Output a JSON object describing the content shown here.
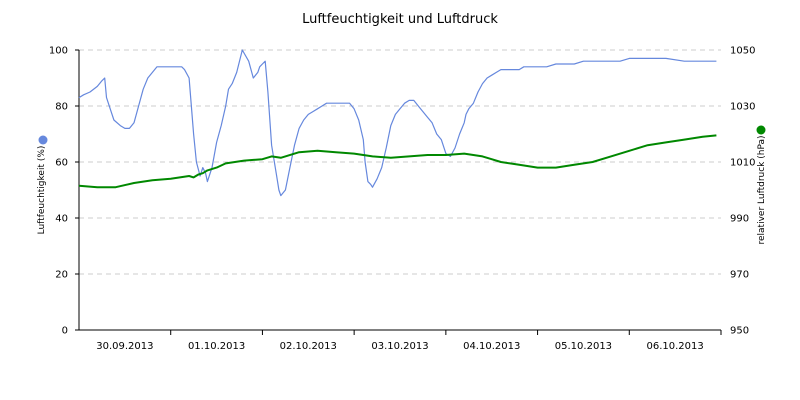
{
  "chart_data": {
    "type": "line",
    "title": "Luftfeuchtigkeit und Luftdruck",
    "grid": true,
    "x_tick_labels": [
      "30.09.2013",
      "01.10.2013",
      "02.10.2013",
      "03.10.2013",
      "04.10.2013",
      "05.10.2013",
      "06.10.2013"
    ],
    "y_left": {
      "label": "Luftfeuchtigkeit (%)",
      "range": [
        0,
        100
      ],
      "ticks": [
        0,
        20,
        40,
        60,
        80,
        100
      ]
    },
    "y_right": {
      "label": "relativer Luftdruck (hPa)",
      "range": [
        950,
        1050
      ],
      "ticks": [
        950,
        970,
        990,
        1010,
        1030,
        1050
      ]
    },
    "x_range": [
      0,
      7
    ],
    "series": [
      {
        "name": "Luftfeuchtigkeit",
        "axis": "left",
        "color": "#6688dd",
        "x": [
          0.0,
          0.05,
          0.12,
          0.2,
          0.25,
          0.28,
          0.3,
          0.35,
          0.38,
          0.45,
          0.5,
          0.55,
          0.6,
          0.65,
          0.7,
          0.75,
          0.8,
          0.85,
          0.9,
          0.95,
          1.0,
          1.05,
          1.08,
          1.12,
          1.15,
          1.2,
          1.22,
          1.25,
          1.28,
          1.32,
          1.35,
          1.38,
          1.4,
          1.45,
          1.5,
          1.55,
          1.6,
          1.63,
          1.67,
          1.72,
          1.78,
          1.85,
          1.9,
          1.95,
          1.97,
          2.0,
          2.03,
          2.06,
          2.1,
          2.15,
          2.18,
          2.2,
          2.25,
          2.3,
          2.35,
          2.4,
          2.45,
          2.5,
          2.55,
          2.6,
          2.65,
          2.7,
          2.75,
          2.8,
          2.85,
          2.9,
          2.95,
          3.0,
          3.05,
          3.1,
          3.12,
          3.15,
          3.18,
          3.2,
          3.25,
          3.3,
          3.35,
          3.4,
          3.45,
          3.5,
          3.55,
          3.6,
          3.65,
          3.7,
          3.75,
          3.8,
          3.85,
          3.9,
          3.95,
          4.0,
          4.05,
          4.1,
          4.15,
          4.2,
          4.22,
          4.25,
          4.3,
          4.35,
          4.4,
          4.45,
          4.5,
          4.55,
          4.6,
          4.65,
          4.7,
          4.72,
          4.75,
          4.8,
          4.85,
          4.9,
          5.0,
          5.1,
          5.2,
          5.3,
          5.4,
          5.5,
          5.6,
          5.7,
          5.8,
          5.9,
          6.0,
          6.2,
          6.4,
          6.6,
          6.8,
          6.95
        ],
        "y": [
          83,
          84,
          85,
          87,
          89,
          90,
          83,
          78,
          75,
          73,
          72,
          72,
          74,
          80,
          86,
          90,
          92,
          94,
          94,
          94,
          94,
          94,
          94,
          94,
          93,
          90,
          82,
          70,
          60,
          55,
          58,
          56,
          53,
          58,
          67,
          73,
          80,
          86,
          88,
          92,
          100,
          96,
          90,
          92,
          94,
          95,
          96,
          85,
          66,
          56,
          50,
          48,
          50,
          58,
          66,
          72,
          75,
          77,
          78,
          79,
          80,
          81,
          81,
          81,
          81,
          81,
          81,
          79,
          75,
          68,
          60,
          53,
          52,
          51,
          54,
          58,
          65,
          73,
          77,
          79,
          81,
          82,
          82,
          80,
          78,
          76,
          74,
          70,
          68,
          63,
          62,
          65,
          70,
          74,
          77,
          79,
          81,
          85,
          88,
          90,
          91,
          92,
          93,
          93,
          93,
          93,
          93,
          93,
          94,
          94,
          94,
          94,
          95,
          95,
          95,
          96,
          96,
          96,
          96,
          96,
          97,
          97,
          97,
          96,
          96,
          96
        ]
      },
      {
        "name": "Luftdruck",
        "axis": "right",
        "color": "#008800",
        "x": [
          0.0,
          0.2,
          0.4,
          0.6,
          0.8,
          1.0,
          1.1,
          1.2,
          1.25,
          1.3,
          1.35,
          1.4,
          1.5,
          1.6,
          1.8,
          2.0,
          2.1,
          2.2,
          2.4,
          2.6,
          2.8,
          3.0,
          3.2,
          3.4,
          3.6,
          3.8,
          4.0,
          4.2,
          4.4,
          4.5,
          4.6,
          4.7,
          4.8,
          5.0,
          5.2,
          5.4,
          5.6,
          5.8,
          6.0,
          6.2,
          6.4,
          6.6,
          6.8,
          6.95
        ],
        "y": [
          1001.5,
          1001.0,
          1001.0,
          1002.5,
          1003.5,
          1004.0,
          1004.5,
          1005.0,
          1004.5,
          1005.5,
          1006.0,
          1007.0,
          1008.0,
          1009.5,
          1010.5,
          1011.0,
          1012.0,
          1011.5,
          1013.5,
          1014.0,
          1013.5,
          1013.0,
          1012.0,
          1011.5,
          1012.0,
          1012.5,
          1012.5,
          1013.0,
          1012.0,
          1011.0,
          1010.0,
          1009.5,
          1009.0,
          1008.0,
          1008.0,
          1009.0,
          1010.0,
          1012.0,
          1014.0,
          1016.0,
          1017.0,
          1018.0,
          1019.0,
          1019.5
        ]
      }
    ],
    "legend": [
      {
        "name": "Luftfeuchtigkeit",
        "color": "#6688dd",
        "position": "left"
      },
      {
        "name": "Luftdruck",
        "color": "#008800",
        "position": "right"
      }
    ],
    "axis_color": "#000000",
    "grid_color": "#cccccc"
  }
}
